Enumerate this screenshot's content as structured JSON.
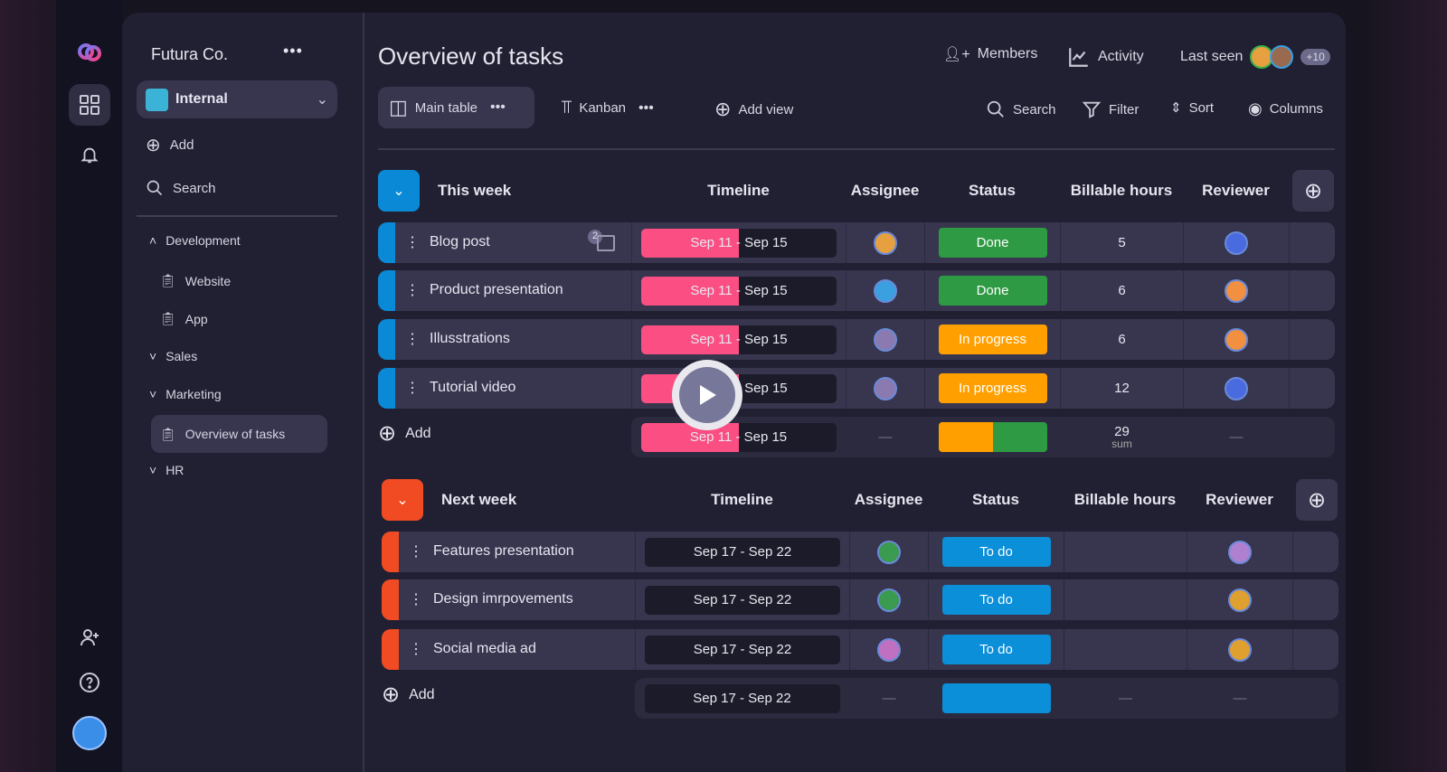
{
  "sidebar": {
    "workspace": "Futura Co.",
    "project": "Internal",
    "add": "Add",
    "search": "Search",
    "tree": [
      {
        "label": "Development"
      },
      {
        "label": "Website"
      },
      {
        "label": "App"
      },
      {
        "label": "Sales"
      },
      {
        "label": "Marketing"
      },
      {
        "label": "Overview of tasks"
      },
      {
        "label": "HR"
      }
    ]
  },
  "header": {
    "title": "Overview of tasks",
    "members": "Members",
    "activity": "Activity",
    "last_seen": "Last seen",
    "extra_count": "+10"
  },
  "toolbar": {
    "main_table": "Main table",
    "kanban": "Kanban",
    "add_view": "Add view",
    "search": "Search",
    "filter": "Filter",
    "sort": "Sort",
    "columns": "Columns"
  },
  "groups": [
    {
      "name": "This week",
      "color": "#0a8ad6",
      "cols": [
        "Timeline",
        "Assignee",
        "Status",
        "Billable  hours",
        "Reviewer"
      ],
      "rows": [
        {
          "name": "Blog post",
          "comments": "2",
          "start": "Sep 11",
          "end": "Sep 15",
          "status": "Done",
          "status_color": "#2e9a43",
          "hours": "5",
          "assignee_color": "#e6a040",
          "reviewer_color": "#4a6ae0"
        },
        {
          "name": "Product presentation",
          "start": "Sep 11",
          "end": "Sep 15",
          "status": "Done",
          "status_color": "#2e9a43",
          "hours": "6",
          "assignee_color": "#3aa0e0",
          "reviewer_color": "#f09040"
        },
        {
          "name": "Illusstrations",
          "start": "Sep 11",
          "end": "Sep 15",
          "status": "In progress",
          "status_color": "#ffa000",
          "hours": "6",
          "assignee_color": "#8a7ab0",
          "reviewer_color": "#f09040"
        },
        {
          "name": "Tutorial video",
          "start": "Sep 11",
          "end": "Sep 15",
          "status": "In progress",
          "status_color": "#ffa000",
          "hours": "12",
          "assignee_color": "#8a7ab0",
          "reviewer_color": "#4a6ae0"
        }
      ],
      "summary": {
        "add": "Add",
        "start": "Sep 11",
        "end": "Sep 15",
        "dash": "—",
        "hours": "29",
        "hours_label": "sum"
      }
    },
    {
      "name": "Next week",
      "color": "#f04b23",
      "cols": [
        "Timeline",
        "Assignee",
        "Status",
        "Billable hours",
        "Reviewer"
      ],
      "rows": [
        {
          "name": "Features presentation",
          "range": "Sep 17 - Sep 22",
          "status": "To do",
          "status_color": "#0a8fd8",
          "assignee_color": "#3a9a50",
          "reviewer_color": "#b080d0"
        },
        {
          "name": "Design imrpovements",
          "range": "Sep 17 - Sep 22",
          "status": "To do",
          "status_color": "#0a8fd8",
          "assignee_color": "#3a9a50",
          "reviewer_color": "#e0a030"
        },
        {
          "name": "Social media ad",
          "range": "Sep 17 - Sep 22",
          "status": "To do",
          "status_color": "#0a8fd8",
          "assignee_color": "#c070c0",
          "reviewer_color": "#e0a030"
        }
      ],
      "summary": {
        "add": "Add",
        "range": "Sep 17 - Sep 22",
        "dash": "—"
      }
    }
  ]
}
